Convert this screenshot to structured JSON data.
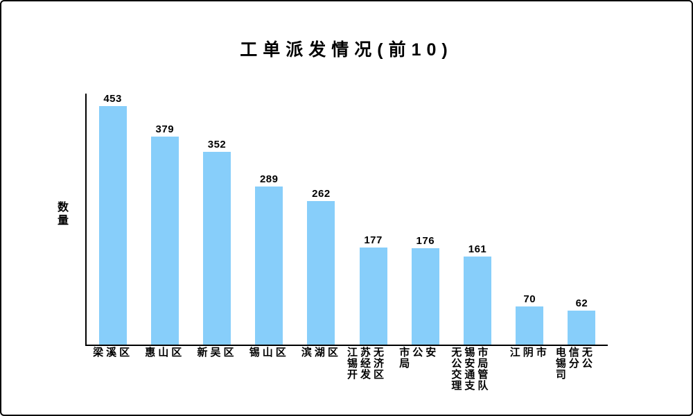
{
  "page": {
    "background_color": "#ffffff",
    "border_color": "#000000"
  },
  "chart_data": {
    "type": "bar",
    "title": "工单派发情况(前10)",
    "xlabel": "",
    "ylabel": "数量",
    "categories": [
      "梁溪区",
      "惠山区",
      "新吴区",
      "锡山区",
      "滨湖区",
      "江苏无锡经济开发区",
      "市公安局",
      "无锡市公安局交通管理支队",
      "江阴市",
      "电信无锡分公司"
    ],
    "values": [
      453,
      379,
      352,
      289,
      262,
      177,
      176,
      161,
      70,
      62
    ],
    "bar_color": "#87CEFA",
    "value_label_color": "#000000",
    "axis_color": "#000000",
    "ylim": [
      0,
      460
    ],
    "grid": false,
    "legend": "none",
    "value_labels_shown": true
  }
}
